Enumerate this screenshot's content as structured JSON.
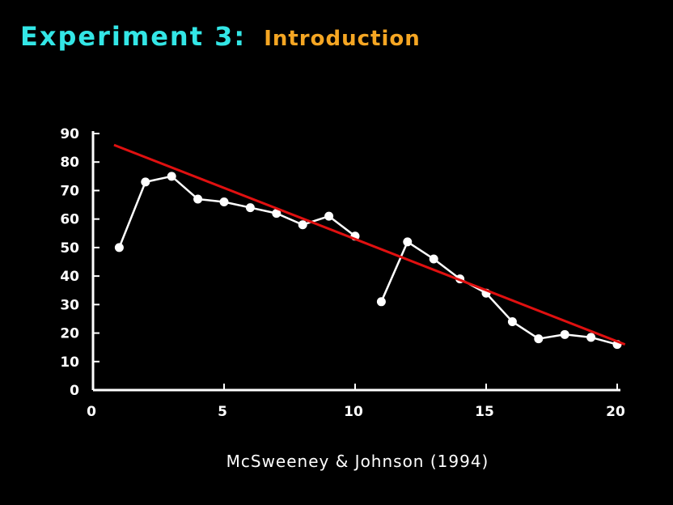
{
  "slide": {
    "title": "Experiment 3:",
    "subtitle": "Introduction",
    "citation": "McSweeney & Johnson  (1994)",
    "colors": {
      "background": "#000000",
      "title": "#33e6e6",
      "subtitle": "#f5a623",
      "chart": "#ffffff",
      "trend_line": "#e01010",
      "citation": "#ffffff"
    }
  },
  "chart_data": {
    "type": "line",
    "title": "",
    "xlabel": "",
    "ylabel": "",
    "xlim": [
      0,
      20
    ],
    "ylim": [
      0,
      90
    ],
    "x_ticks": [
      0,
      5,
      10,
      15,
      20
    ],
    "y_ticks": [
      0,
      10,
      20,
      30,
      40,
      50,
      60,
      70,
      80,
      90
    ],
    "grid": false,
    "segments": [
      {
        "x": [
          1,
          2,
          3,
          4,
          5,
          6,
          7,
          8,
          9,
          10
        ],
        "y": [
          50,
          73,
          75,
          67,
          66,
          64,
          62,
          58,
          61,
          54
        ]
      },
      {
        "x": [
          11,
          12,
          13,
          14,
          15,
          16,
          17,
          18,
          19,
          20
        ],
        "y": [
          31,
          52,
          46,
          39,
          34,
          24,
          18,
          19.5,
          18.5,
          16
        ]
      }
    ],
    "trend_line": {
      "x": [
        0.8,
        20.3
      ],
      "y": [
        86,
        16
      ]
    }
  }
}
